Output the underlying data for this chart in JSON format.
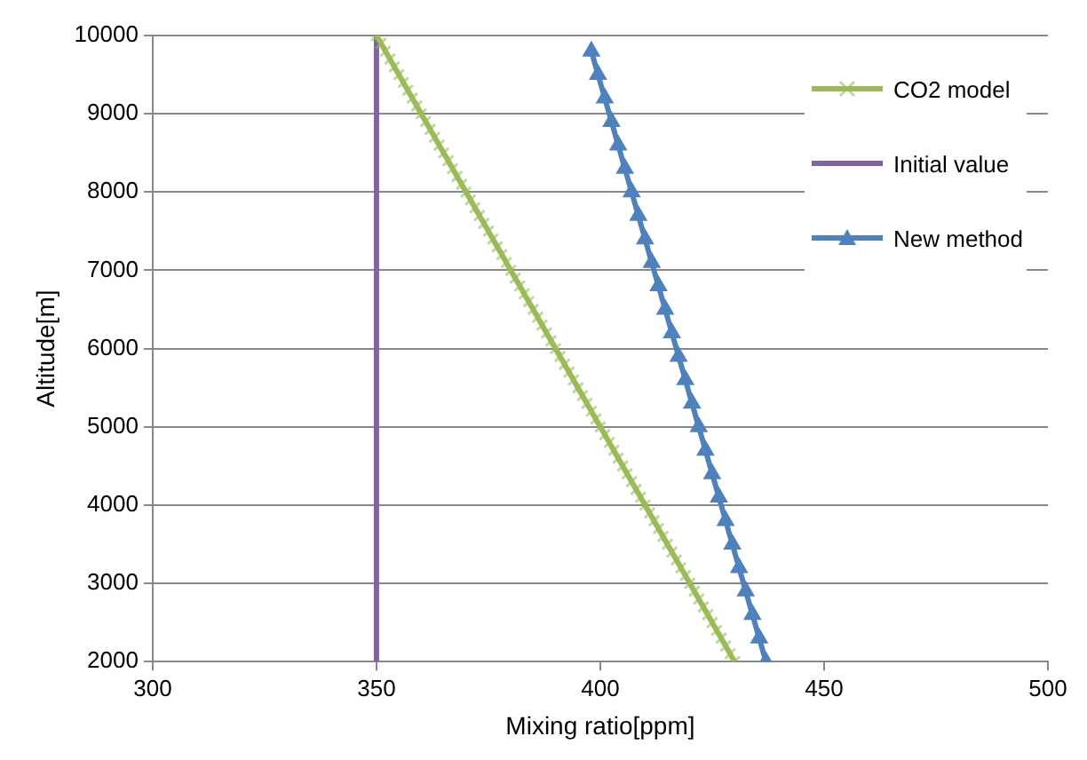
{
  "chart_data": {
    "type": "line",
    "xlabel": "Mixing ratio[ppm]",
    "ylabel": "Altitude[m]",
    "xlim": [
      300,
      500
    ],
    "xticks": [
      300,
      350,
      400,
      450,
      500
    ],
    "ylim": [
      2000,
      10000
    ],
    "yticks": [
      2000,
      3000,
      4000,
      5000,
      6000,
      7000,
      8000,
      9000,
      10000
    ],
    "grid": "y",
    "legend": "top right",
    "line_style": "solid",
    "series": [
      {
        "name": "CO2 model",
        "color": "#9bbb59",
        "marker": "cross",
        "x": [
          430,
          429,
          428,
          427,
          426,
          425,
          424,
          423,
          422,
          421,
          420,
          419,
          418,
          417,
          416,
          415,
          414,
          413,
          412,
          411,
          410,
          409,
          408,
          407,
          406,
          405,
          404,
          403,
          402,
          401,
          400,
          399,
          398,
          397,
          396,
          395,
          394,
          393,
          392,
          391,
          390,
          389,
          388,
          387,
          386,
          385,
          384,
          383,
          382,
          381,
          380,
          379,
          378,
          377,
          376,
          375,
          374,
          373,
          372,
          371,
          370,
          369,
          368,
          367,
          366,
          365,
          364,
          363,
          362,
          361,
          360,
          359,
          358,
          357,
          356,
          355,
          354,
          353,
          352,
          351,
          350
        ],
        "values": [
          2000,
          2100,
          2200,
          2300,
          2400,
          2500,
          2600,
          2700,
          2800,
          2900,
          3000,
          3100,
          3200,
          3300,
          3400,
          3500,
          3600,
          3700,
          3800,
          3900,
          4000,
          4100,
          4200,
          4300,
          4400,
          4500,
          4600,
          4700,
          4800,
          4900,
          5000,
          5100,
          5200,
          5300,
          5400,
          5500,
          5600,
          5700,
          5800,
          5900,
          6000,
          6100,
          6200,
          6300,
          6400,
          6500,
          6600,
          6700,
          6800,
          6900,
          7000,
          7100,
          7200,
          7300,
          7400,
          7500,
          7600,
          7700,
          7800,
          7900,
          8000,
          8100,
          8200,
          8300,
          8400,
          8500,
          8600,
          8700,
          8800,
          8900,
          9000,
          9100,
          9200,
          9300,
          9400,
          9500,
          9600,
          9700,
          9800,
          9900,
          10000
        ]
      },
      {
        "name": "Initial value",
        "color": "#8064a2",
        "marker": "none",
        "x": [
          350,
          350
        ],
        "values": [
          2000,
          10000
        ]
      },
      {
        "name": "New method",
        "color": "#4f81bd",
        "marker": "triangle",
        "x": [
          437,
          435.5,
          434,
          432.5,
          431,
          429.5,
          428,
          426.5,
          425,
          423.5,
          422,
          420.5,
          419,
          417.5,
          416,
          414.5,
          413,
          411.5,
          410,
          408.5,
          407,
          405.5,
          404,
          402.5,
          401,
          399.5,
          398
        ],
        "values": [
          2000,
          2300,
          2600,
          2900,
          3200,
          3500,
          3800,
          4100,
          4400,
          4700,
          5000,
          5300,
          5600,
          5900,
          6200,
          6500,
          6800,
          7100,
          7400,
          7700,
          8000,
          8300,
          8600,
          8900,
          9200,
          9500,
          9800
        ]
      }
    ]
  }
}
